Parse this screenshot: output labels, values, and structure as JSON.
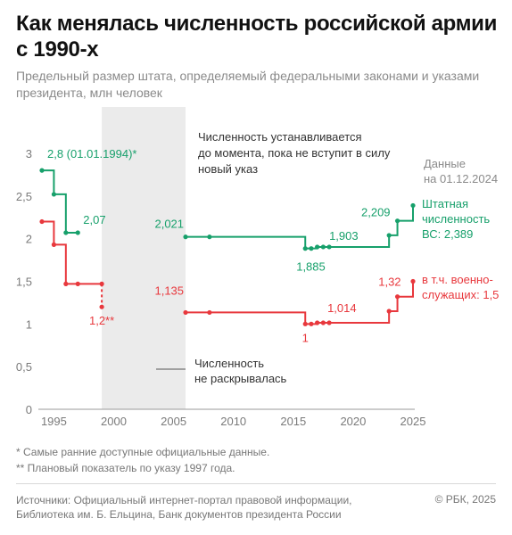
{
  "title": "Как менялась численность российской армии с 1990-х",
  "subtitle": "Предельный размер штата, определяемый федеральными законами и указами президента, млн человек",
  "chart_data": {
    "type": "line",
    "x_ticks": [
      1995,
      2000,
      2005,
      2010,
      2015,
      2020,
      2025
    ],
    "y_ticks": [
      0,
      0.5,
      1,
      1.5,
      2,
      2.5,
      3
    ],
    "y_tick_labels": [
      "0",
      "0,5",
      "1",
      "1,5",
      "2",
      "2,5",
      "3"
    ],
    "xlim": [
      1994,
      2025
    ],
    "ylim": [
      0,
      3.1
    ],
    "grid": false,
    "shaded_region": {
      "x": [
        1999,
        2006
      ],
      "label": "Численность не раскрывалась"
    },
    "annotation": "Численность устанавливается до момента, пока не вступит в силу новый указ",
    "data_note": "Данные на 01.12.2024",
    "series": [
      {
        "name": "Штатная численность ВС",
        "color": "#17a06b",
        "segments": [
          [
            [
              1994,
              2.8
            ],
            [
              1995,
              2.52
            ],
            [
              1996,
              2.07
            ],
            [
              1997,
              2.07
            ]
          ],
          [
            [
              2006,
              2.021
            ],
            [
              2008,
              2.021
            ],
            [
              2016,
              1.885
            ],
            [
              2016.5,
              1.885
            ],
            [
              2017,
              1.903
            ],
            [
              2017.5,
              1.903
            ],
            [
              2018,
              1.903
            ],
            [
              2023,
              2.039
            ],
            [
              2023.7,
              2.209
            ],
            [
              2025,
              2.389
            ]
          ]
        ],
        "end_label": "Штатная численность ВС: 2,389",
        "labels": [
          {
            "x": 1994,
            "y": 2.8,
            "text": "2,8 (01.01.1994)*"
          },
          {
            "x": 1997,
            "y": 2.07,
            "text": "2,07"
          },
          {
            "x": 2006,
            "y": 2.021,
            "text": "2,021"
          },
          {
            "x": 2016,
            "y": 1.885,
            "text": "1,885"
          },
          {
            "x": 2018,
            "y": 1.903,
            "text": "1,903"
          },
          {
            "x": 2023.7,
            "y": 2.209,
            "text": "2,209"
          }
        ]
      },
      {
        "name": "в т.ч. военнослужащих",
        "color": "#e8383d",
        "segments": [
          [
            [
              1994,
              2.2
            ],
            [
              1995,
              1.93
            ],
            [
              1996,
              1.47
            ],
            [
              1997,
              1.47
            ],
            [
              1999,
              1.47
            ]
          ],
          [
            [
              2006,
              1.135
            ],
            [
              2008,
              1.135
            ],
            [
              2016,
              1.0
            ],
            [
              2016.5,
              1.0
            ],
            [
              2017,
              1.014
            ],
            [
              2017.5,
              1.014
            ],
            [
              2018,
              1.014
            ],
            [
              2023,
              1.15
            ],
            [
              2023.7,
              1.32
            ],
            [
              2025,
              1.5
            ]
          ]
        ],
        "dashed": [
          [
            1999,
            1.47
          ],
          [
            1999,
            1.2
          ]
        ],
        "end_label": "в т.ч. военно-служащих: 1,5",
        "labels": [
          {
            "x": 1999,
            "y": 1.2,
            "text": "1,2**"
          },
          {
            "x": 2006,
            "y": 1.135,
            "text": "1,135"
          },
          {
            "x": 2016,
            "y": 1.0,
            "text": "1"
          },
          {
            "x": 2018,
            "y": 1.014,
            "text": "1,014"
          },
          {
            "x": 2023.7,
            "y": 1.32,
            "text": "1,32"
          }
        ]
      }
    ]
  },
  "series_labels": {
    "green_line1": "Штатная",
    "green_line2": "численность",
    "green_line3": "ВС: 2,389",
    "red_line1": "в т.ч. военно-",
    "red_line2": "служащих: 1,5"
  },
  "note_lines": [
    "Численность устанавливается",
    "до момента, пока не вступит в силу",
    "новый указ"
  ],
  "data_note_lines": [
    "Данные",
    "на 01.12.2024"
  ],
  "shade_label_lines": [
    "Численность",
    "не раскрывалась"
  ],
  "footnotes": [
    "* Самые ранние доступные официальные данные.",
    "** Плановый показатель по указу 1997 года."
  ],
  "sources": "Источники: Официальный интернет-портал правовой информации, Библиотека им. Б. Ельцина, Банк документов президента России",
  "credit": "© РБК, 2025",
  "colors": {
    "green": "#17a06b",
    "red": "#e8383d",
    "shade": "#ebebeb"
  }
}
